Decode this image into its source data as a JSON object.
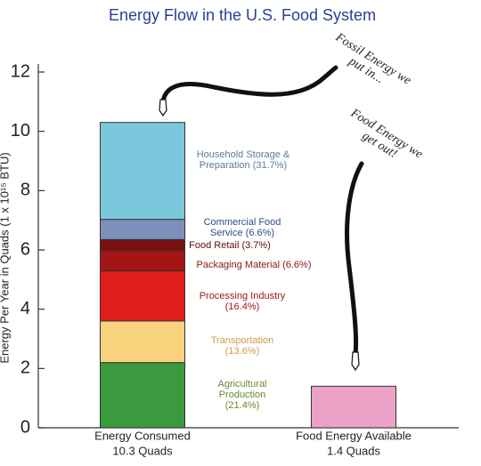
{
  "chart_data": {
    "type": "stacked_bar",
    "title": "Energy Flow in the U.S. Food System",
    "y_label": "Energy Per Year in Quads (1 x 10¹⁵ BTU)",
    "categories": [
      "Energy Consumed",
      "Food Energy Available"
    ],
    "total_labels": [
      "10.3 Quads",
      "1.4 Quads"
    ],
    "series": [
      {
        "name": "Agricultural Production (21.4%)",
        "color": "#3b9a3f",
        "label_color": "#6b8a2e",
        "values": [
          2.2,
          null
        ]
      },
      {
        "name": "Transportation (13.6%)",
        "color": "#f8d27c",
        "label_color": "#d09a48",
        "values": [
          1.4,
          null
        ]
      },
      {
        "name": "Processing Industry (16.4%)",
        "color": "#e01c1c",
        "label_color": "#a3161a",
        "values": [
          1.69,
          null
        ]
      },
      {
        "name": "Packaging Material (6.6%)",
        "color": "#a41616",
        "label_color": "#8a1616",
        "values": [
          0.68,
          null
        ]
      },
      {
        "name": "Food Retail (3.7%)",
        "color": "#7a1111",
        "label_color": "#5e0c0c",
        "values": [
          0.38,
          null
        ]
      },
      {
        "name": "Commercial Food Service (6.6%)",
        "color": "#7c90b9",
        "label_color": "#2e4b8a",
        "values": [
          0.68,
          null
        ]
      },
      {
        "name": "Household Storage & Preparation (31.7%)",
        "color": "#7bc7dc",
        "label_color": "#5b7a9a",
        "values": [
          3.27,
          null
        ]
      },
      {
        "color": "#eba2c6",
        "values": [
          null,
          1.4
        ]
      }
    ],
    "annotations": [
      "Fossil Energy we put in...",
      "Food Energy we get out!"
    ],
    "ylim": [
      0,
      12
    ],
    "yticks": [
      0,
      2,
      4,
      6,
      8,
      10,
      12
    ]
  }
}
